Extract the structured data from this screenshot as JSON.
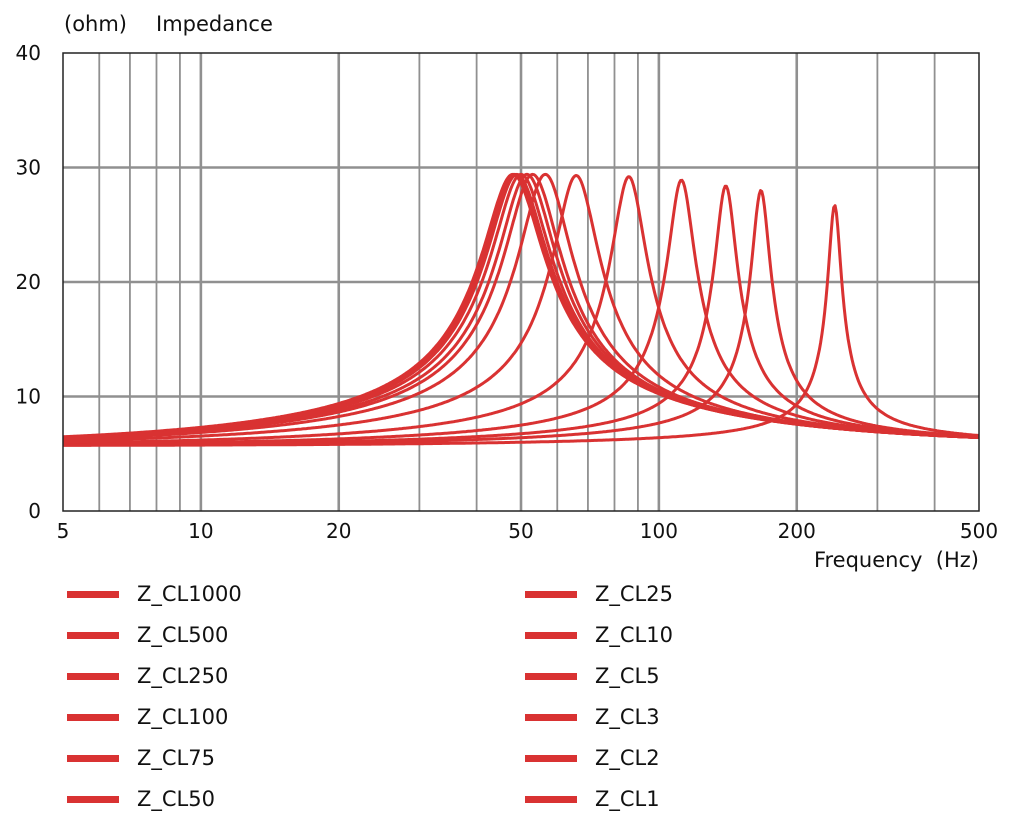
{
  "chart_data": {
    "type": "line",
    "title": "Impedance",
    "ylabel": "(ohm)",
    "xlabel": "Frequency  (Hz)",
    "x_scale": "log",
    "xlim": [
      5,
      500
    ],
    "ylim": [
      0,
      40
    ],
    "x_ticks": [
      5,
      10,
      20,
      50,
      100,
      200,
      500
    ],
    "y_ticks": [
      0,
      10,
      20,
      30,
      40
    ],
    "grid": true,
    "legend_position": "bottom",
    "color": "#d93232",
    "baseline": 5.7,
    "series": [
      {
        "name": "Z_CL1000",
        "peak_freq": 48,
        "peak_value": 29.4
      },
      {
        "name": "Z_CL500",
        "peak_freq": 48.5,
        "peak_value": 29.4
      },
      {
        "name": "Z_CL250",
        "peak_freq": 49,
        "peak_value": 29.4
      },
      {
        "name": "Z_CL100",
        "peak_freq": 50,
        "peak_value": 29.4
      },
      {
        "name": "Z_CL75",
        "peak_freq": 51.5,
        "peak_value": 29.4
      },
      {
        "name": "Z_CL50",
        "peak_freq": 53,
        "peak_value": 29.4
      },
      {
        "name": "Z_CL25",
        "peak_freq": 56.5,
        "peak_value": 29.4
      },
      {
        "name": "Z_CL10",
        "peak_freq": 66,
        "peak_value": 29.3
      },
      {
        "name": "Z_CL5",
        "peak_freq": 86,
        "peak_value": 29.2
      },
      {
        "name": "Z_CL3",
        "peak_freq": 112,
        "peak_value": 28.9
      },
      {
        "name": "Z_CL2",
        "peak_freq": 140,
        "peak_value": 28.4
      },
      {
        "name": "Z_CL1",
        "peak_freq": 167,
        "peak_value": 28
      },
      {
        "name": "",
        "peak_freq": 242,
        "peak_value": 26.7
      }
    ]
  }
}
